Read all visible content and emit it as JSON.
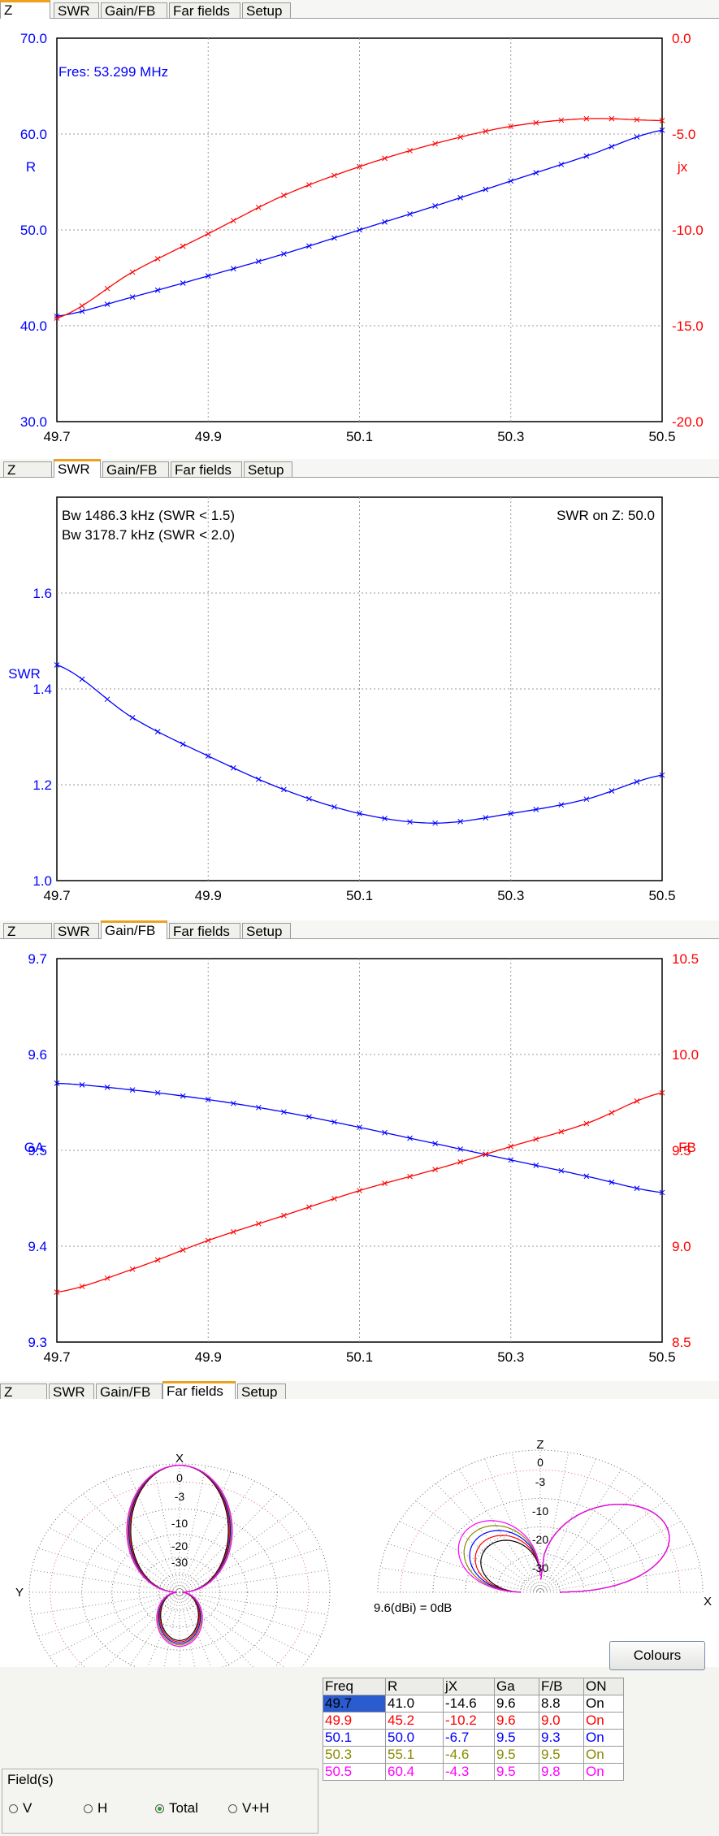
{
  "tabs": [
    "Z",
    "SWR",
    "Gain/FB",
    "Far fields",
    "Setup"
  ],
  "x_ticks": [
    "49.7",
    "49.9",
    "50.1",
    "50.3",
    "50.5"
  ],
  "z_chart": {
    "annotation": "Fres: 53.299 MHz",
    "left_label": "R",
    "right_label": "jx",
    "left_ticks": [
      "70.0",
      "60.0",
      "50.0",
      "40.0",
      "30.0"
    ],
    "right_ticks": [
      "0.0",
      "-5.0",
      "-10.0",
      "-15.0",
      "-20.0"
    ],
    "colors": {
      "r": "#0000ff",
      "jx": "#ff0000"
    }
  },
  "swr_chart": {
    "bw1": "Bw 1486.3 kHz (SWR < 1.5)",
    "bw2": "Bw 3178.7 kHz (SWR < 2.0)",
    "swr_on_z": "SWR on Z: 50.0",
    "left_label": "SWR",
    "left_ticks": [
      "1.6",
      "1.4",
      "1.2",
      "1.0"
    ],
    "top_tick": "1.8"
  },
  "gain_chart": {
    "left_label": "GA",
    "right_label": "FB",
    "left_ticks": [
      "9.7",
      "9.6",
      "9.5",
      "9.4",
      "9.3"
    ],
    "right_ticks": [
      "10.5",
      "10.0",
      "9.5",
      "9.0",
      "8.5"
    ]
  },
  "far_fields": {
    "az_labels": {
      "top": "X",
      "left": "Y",
      "rings": [
        "0",
        "-3",
        "-10",
        "-20",
        "-30"
      ]
    },
    "el_labels": {
      "top": "Z",
      "right": "X",
      "rings": [
        "0",
        "-3",
        "-10",
        "-20",
        "-30"
      ]
    },
    "ref_text": "9.6(dBi) = 0dB",
    "colours_button": "Colours",
    "fields_label": "Field(s)",
    "radio": [
      "V",
      "H",
      "Total",
      "V+H"
    ],
    "radio_selected": "Total",
    "table_headers": [
      "Freq",
      "R",
      "jX",
      "Ga",
      "F/B",
      "ON"
    ],
    "table_rows": [
      {
        "cells": [
          "49.7",
          "41.0",
          "-14.6",
          "9.6",
          "8.8",
          "On"
        ],
        "color": "#000000"
      },
      {
        "cells": [
          "49.9",
          "45.2",
          "-10.2",
          "9.6",
          "9.0",
          "On"
        ],
        "color": "#ff0000"
      },
      {
        "cells": [
          "50.1",
          "50.0",
          "-6.7",
          "9.5",
          "9.3",
          "On"
        ],
        "color": "#0000ff"
      },
      {
        "cells": [
          "50.3",
          "55.1",
          "-4.6",
          "9.5",
          "9.5",
          "On"
        ],
        "color": "#8a8a00"
      },
      {
        "cells": [
          "50.5",
          "60.4",
          "-4.3",
          "9.5",
          "9.8",
          "On"
        ],
        "color": "#ff00ff"
      }
    ]
  },
  "chart_data": [
    {
      "type": "line",
      "x": [
        49.7,
        49.8,
        49.9,
        50.0,
        50.1,
        50.2,
        50.3,
        50.4,
        50.5
      ],
      "xlim": [
        49.7,
        50.5
      ],
      "series": [
        {
          "name": "R",
          "axis": "left",
          "ylim": [
            30,
            70
          ],
          "values": [
            41.0,
            43.0,
            45.2,
            47.5,
            50.0,
            52.5,
            55.1,
            57.7,
            60.4
          ]
        },
        {
          "name": "jx",
          "axis": "right",
          "ylim": [
            -20,
            0
          ],
          "values": [
            -14.6,
            -12.2,
            -10.2,
            -8.2,
            -6.7,
            -5.5,
            -4.6,
            -4.2,
            -4.3
          ]
        }
      ],
      "annotation": "Fres: 53.299 MHz",
      "grid": true
    },
    {
      "type": "line",
      "x": [
        49.7,
        49.8,
        49.9,
        50.0,
        50.1,
        50.2,
        50.3,
        50.4,
        50.5
      ],
      "xlim": [
        49.7,
        50.5
      ],
      "series": [
        {
          "name": "SWR",
          "axis": "left",
          "ylim": [
            1.0,
            1.8
          ],
          "values": [
            1.45,
            1.34,
            1.26,
            1.19,
            1.14,
            1.12,
            1.14,
            1.17,
            1.22
          ]
        }
      ],
      "grid": true
    },
    {
      "type": "line",
      "x": [
        49.7,
        49.8,
        49.9,
        50.0,
        50.1,
        50.2,
        50.3,
        50.4,
        50.5
      ],
      "xlim": [
        49.7,
        50.5
      ],
      "series": [
        {
          "name": "GA",
          "axis": "left",
          "ylim": [
            9.3,
            9.7
          ],
          "values": [
            9.57,
            9.563,
            9.553,
            9.54,
            9.524,
            9.507,
            9.49,
            9.473,
            9.456
          ]
        },
        {
          "name": "FB",
          "axis": "right",
          "ylim": [
            8.5,
            10.5
          ],
          "values": [
            8.76,
            8.88,
            9.03,
            9.16,
            9.29,
            9.4,
            9.52,
            9.64,
            9.8
          ]
        }
      ],
      "grid": true
    }
  ]
}
